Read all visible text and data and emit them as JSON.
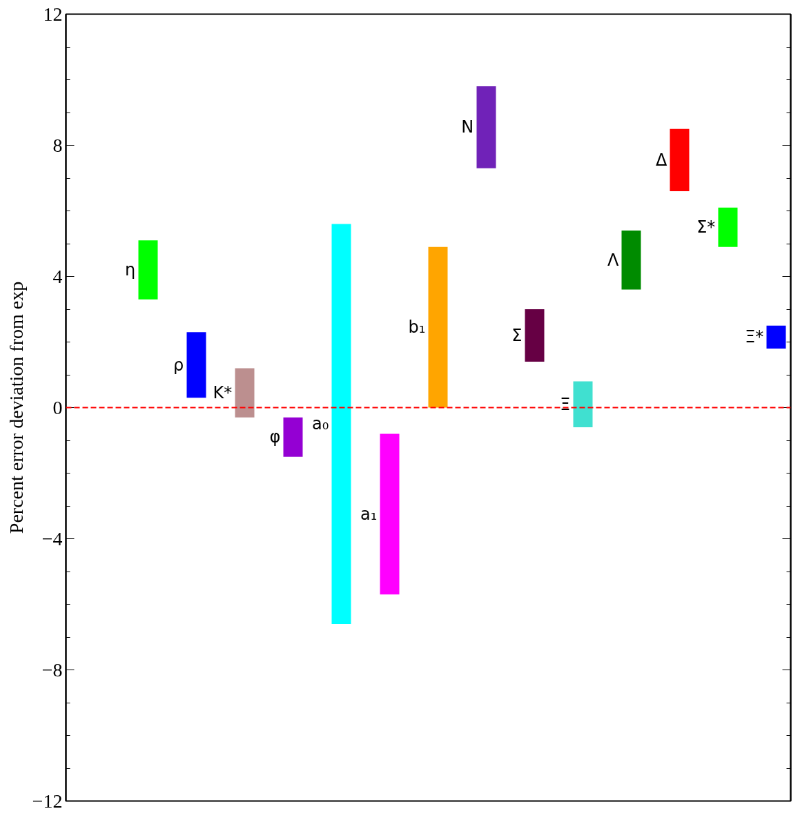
{
  "chart_data": {
    "type": "bar",
    "ylabel": "Percent error deviation from exp",
    "categories": [
      "η",
      "ρ",
      "K*",
      "φ",
      "a₀",
      "a₁",
      "b₁",
      "N",
      "Σ",
      "Ξ",
      "Λ",
      "Δ",
      "Σ*",
      "Ξ*"
    ],
    "base": [
      3.3,
      0.3,
      -0.3,
      -1.5,
      -6.6,
      -5.7,
      0.0,
      7.3,
      1.4,
      -0.6,
      3.6,
      6.6,
      4.9,
      1.8
    ],
    "values": [
      1.8,
      2.0,
      1.5,
      1.2,
      12.2,
      4.9,
      4.9,
      2.5,
      1.6,
      1.4,
      1.8,
      1.9,
      1.2,
      0.7
    ],
    "colors": [
      "#00ff00",
      "#0000ff",
      "#bc8f8f",
      "#9400d3",
      "#00ffff",
      "#ff00ff",
      "#ffa500",
      "#7022b8",
      "#660044",
      "#40e0d0",
      "#008b00",
      "#ff0000",
      "#00ff00",
      "#0000ff"
    ],
    "ylim": [
      -12,
      12
    ],
    "yticks": [
      -12,
      -8,
      -4,
      0,
      4,
      8,
      12
    ],
    "ref_lines": [
      {
        "axis": "y",
        "value": 0,
        "color": "#ff0000",
        "line_style": "dashed"
      }
    ],
    "grid": false,
    "tick_labels": "y"
  }
}
